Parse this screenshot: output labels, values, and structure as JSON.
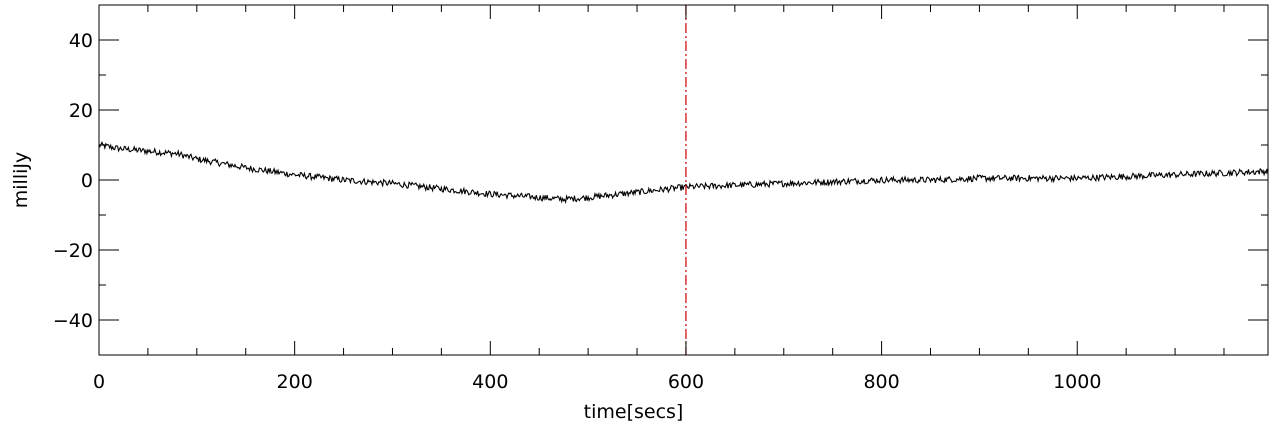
{
  "chart_data": {
    "type": "line",
    "title": "",
    "xlabel": "time[secs]",
    "ylabel": "milliJy",
    "xlim": [
      0,
      1195
    ],
    "ylim": [
      -50,
      50
    ],
    "x_ticks": [
      0,
      200,
      400,
      600,
      800,
      1000
    ],
    "x_tick_labels": [
      "0",
      "200",
      "400",
      "600",
      "800",
      "1000"
    ],
    "x_minor_step": 50,
    "y_ticks": [
      -40,
      -20,
      0,
      20,
      40
    ],
    "y_tick_labels": [
      "−40",
      "−20",
      "0",
      "20",
      "40"
    ],
    "y_minor_step": 10,
    "grid": false,
    "colors": {
      "series": "#000000",
      "marker_line": "#cc0000",
      "axis": "#000000"
    },
    "reference_line": {
      "x": 600,
      "style": "dash-dot",
      "color": "#cc0000"
    },
    "series": [
      {
        "noise_amplitude": 0.9,
        "sample_step": 1,
        "trend": {
          "x": [
            0,
            20,
            40,
            60,
            80,
            100,
            120,
            150,
            200,
            250,
            300,
            350,
            400,
            450,
            475,
            500,
            550,
            600,
            650,
            700,
            750,
            800,
            850,
            900,
            950,
            1000,
            1050,
            1100,
            1150,
            1195
          ],
          "y": [
            10,
            9,
            8.5,
            8,
            7.5,
            6,
            5,
            3.5,
            1.5,
            0,
            -1,
            -2.5,
            -4,
            -5,
            -5.5,
            -5,
            -3.5,
            -2,
            -1.5,
            -1,
            -0.5,
            0,
            0,
            0.5,
            0.5,
            0.5,
            1,
            1.5,
            2,
            2.5
          ]
        }
      }
    ]
  }
}
